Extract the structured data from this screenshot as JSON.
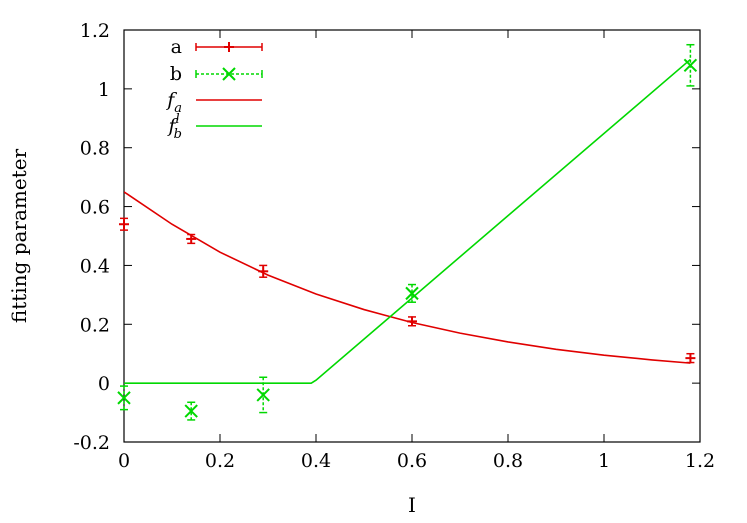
{
  "chart_data": {
    "type": "scatter",
    "xlabel": "I",
    "ylabel": "fitting parameter",
    "xlim": [
      0,
      1.2
    ],
    "ylim": [
      -0.2,
      1.2
    ],
    "x_ticks": [
      0,
      0.2,
      0.4,
      0.6,
      0.8,
      1,
      1.2
    ],
    "x_tick_labels": [
      "0",
      "0.2",
      "0.4",
      "0.6",
      "0.8",
      "1",
      "1.2"
    ],
    "y_ticks": [
      -0.2,
      0,
      0.2,
      0.4,
      0.6,
      0.8,
      1,
      1.2
    ],
    "y_tick_labels": [
      "-0.2",
      "0",
      "0.2",
      "0.4",
      "0.6",
      "0.8",
      "1",
      "1.2"
    ],
    "grid": false,
    "legend_position": "top-left",
    "series": [
      {
        "name": "a",
        "kind": "points",
        "marker": "plus",
        "color": "#e00000",
        "points": [
          {
            "x": 0.0,
            "y": 0.54,
            "err": 0.02
          },
          {
            "x": 0.14,
            "y": 0.49,
            "err": 0.015
          },
          {
            "x": 0.29,
            "y": 0.38,
            "err": 0.02
          },
          {
            "x": 0.6,
            "y": 0.21,
            "err": 0.015
          },
          {
            "x": 1.18,
            "y": 0.085,
            "err": 0.015
          }
        ]
      },
      {
        "name": "b",
        "kind": "points",
        "marker": "cross",
        "color": "#00d800",
        "points": [
          {
            "x": 0.0,
            "y": -0.05,
            "err": 0.04
          },
          {
            "x": 0.14,
            "y": -0.095,
            "err": 0.03
          },
          {
            "x": 0.29,
            "y": -0.04,
            "err": 0.06
          },
          {
            "x": 0.6,
            "y": 0.305,
            "err": 0.03
          },
          {
            "x": 1.18,
            "y": 1.08,
            "err": 0.07
          }
        ]
      },
      {
        "name": "f_a",
        "kind": "line",
        "color": "#e00000",
        "x": [
          0,
          0.1,
          0.2,
          0.3,
          0.4,
          0.5,
          0.6,
          0.7,
          0.8,
          0.9,
          1.0,
          1.1,
          1.18
        ],
        "values": [
          0.65,
          0.54,
          0.445,
          0.367,
          0.303,
          0.25,
          0.206,
          0.17,
          0.14,
          0.115,
          0.095,
          0.079,
          0.068
        ]
      },
      {
        "name": "f_b^l",
        "kind": "line",
        "color": "#00d800",
        "x": [
          0,
          0.38,
          0.39,
          0.4,
          1.18
        ],
        "values": [
          0,
          0,
          0.0,
          0.01,
          1.1
        ]
      }
    ],
    "legend": [
      {
        "series": 0,
        "text": "a",
        "sub": "",
        "sup": ""
      },
      {
        "series": 1,
        "text": "b",
        "sub": "",
        "sup": ""
      },
      {
        "series": 2,
        "text": "f",
        "sub": "a",
        "sup": ""
      },
      {
        "series": 3,
        "text": "f",
        "sub": "b",
        "sup": "l"
      }
    ]
  }
}
